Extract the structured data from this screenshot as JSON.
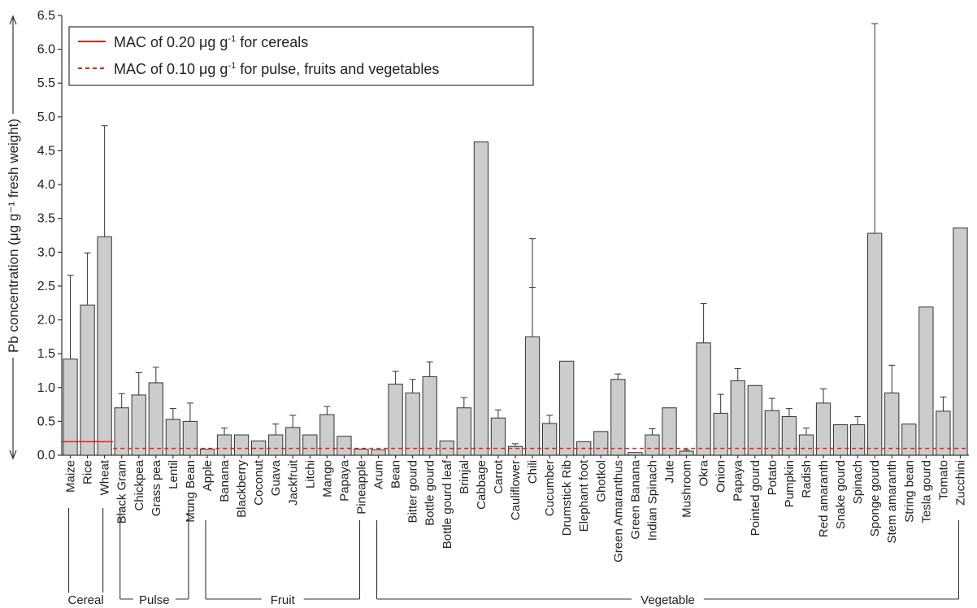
{
  "chart_data": {
    "type": "bar",
    "ylabel": "Pb concentration (μg g⁻¹ fresh weight)",
    "ylim": [
      0,
      6.5
    ],
    "yticks": [
      0.0,
      0.5,
      1.0,
      1.5,
      2.0,
      2.5,
      3.0,
      3.5,
      4.0,
      4.5,
      5.0,
      5.5,
      6.0,
      6.5
    ],
    "ytick_labels": [
      "0.0",
      "0.5",
      "1.0",
      "1.5",
      "2.0",
      "2.5",
      "3.0",
      "3.5",
      "4.0",
      "4.5",
      "5.0",
      "5.5",
      "6.0",
      "6.5"
    ],
    "categories": [
      "Maize",
      "Rice",
      "Wheat",
      "Black Gram",
      "Chickpea",
      "Grass pea",
      "Lentil",
      "Mung Bean",
      "Apple",
      "Banana",
      "Blackberry",
      "Coconut",
      "Guava",
      "Jackfruit",
      "Litchi",
      "Mango",
      "Papaya",
      "Pineapple",
      "Arum",
      "Bean",
      "Bitter gourd",
      "Bottle gourd",
      "Bottle gourd leaf",
      "Brinjal",
      "Cabbage",
      "Carrot",
      "Cauliflower",
      "Chili",
      "Cucumber",
      "Drumstick Rib",
      "Elephant foot",
      "Ghotkol",
      "Green Amaranthus",
      "Green Banana",
      "Indian Spinach",
      "Jute",
      "Mushroom",
      "Okra",
      "Onion",
      "Papaya",
      "Pointed gourd",
      "Potato",
      "Pumpkin",
      "Radish",
      "Red amaranth",
      "Snake gourd",
      "Spinach",
      "Sponge gourd",
      "Stem amaranth",
      "String bean",
      "Tesla gourd",
      "Tomato",
      "Zucchini"
    ],
    "values": [
      1.42,
      2.22,
      3.23,
      0.7,
      0.89,
      1.07,
      0.53,
      0.5,
      0.09,
      0.3,
      0.3,
      0.21,
      0.3,
      0.41,
      0.3,
      0.6,
      0.28,
      0.09,
      0.08,
      1.05,
      0.92,
      1.16,
      0.21,
      0.7,
      4.63,
      0.55,
      0.13,
      1.75,
      0.47,
      1.39,
      0.2,
      0.35,
      1.12,
      0.04,
      0.3,
      0.7,
      0.06,
      1.66,
      0.62,
      1.1,
      1.03,
      0.66,
      0.57,
      0.3,
      0.77,
      0.45,
      0.45,
      3.28,
      0.92,
      0.46,
      2.19,
      0.65,
      3.36
    ],
    "error_upper": [
      2.66,
      2.99,
      4.87,
      0.91,
      1.22,
      1.3,
      0.69,
      0.77,
      null,
      0.4,
      null,
      null,
      0.46,
      0.59,
      null,
      0.72,
      null,
      null,
      null,
      1.24,
      1.12,
      1.38,
      null,
      0.85,
      null,
      0.67,
      0.17,
      3.2,
      0.59,
      null,
      null,
      null,
      1.2,
      null,
      0.39,
      null,
      0.08,
      2.24,
      0.9,
      1.28,
      null,
      0.84,
      0.69,
      0.4,
      0.98,
      null,
      0.57,
      6.38,
      1.33,
      null,
      null,
      0.86,
      null
    ],
    "chili_inner_tick": 2.48,
    "thresholds": [
      {
        "name": "MAC of 0.20 μg g⁻¹ for cereals",
        "value": 0.2,
        "style": "solid",
        "color": "#e0201b",
        "applies_to_first": 3
      },
      {
        "name": "MAC of 0.10 μg g⁻¹ for pulse, fruits and vegetables",
        "value": 0.1,
        "style": "dashed",
        "color": "#e0201b"
      }
    ],
    "groups": [
      {
        "label": "Cereal",
        "start": 0,
        "end": 2
      },
      {
        "label": "Pulse",
        "start": 3,
        "end": 7
      },
      {
        "label": "Fruit",
        "start": 8,
        "end": 17
      },
      {
        "label": "Vegetable",
        "start": 18,
        "end": 52
      }
    ],
    "legend_position": "top-left",
    "grid": false,
    "bar_color": "#cccccc"
  },
  "legend": {
    "cereal_prefix": "MAC of 0.20 μg g",
    "cereal_sup": "-1",
    "cereal_suffix": " for cereals",
    "other_prefix": "MAC of 0.10 μg g",
    "other_sup": "-1",
    "other_suffix": " for pulse, fruits and vegetables"
  }
}
